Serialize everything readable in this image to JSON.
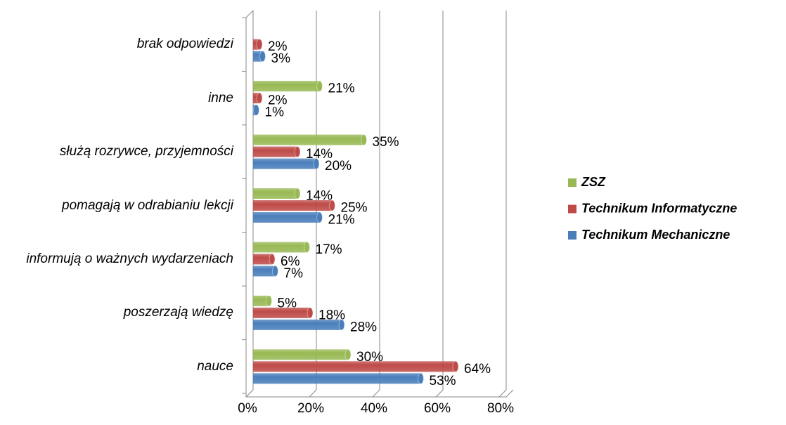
{
  "chart_data": {
    "type": "bar",
    "orientation": "horizontal",
    "categories": [
      "nauce",
      "poszerzają wiedzę",
      "informują o ważnych wydarzeniach",
      "pomagają w odrabianiu lekcji",
      "służą rozrywce, przyjemności",
      "inne",
      "brak odpowiedzi"
    ],
    "series": [
      {
        "name": "Technikum Mechaniczne",
        "color": "#4a7ebb",
        "values": [
          53,
          28,
          7,
          21,
          20,
          1,
          3
        ],
        "value_labels": [
          "53%",
          "28%",
          "7%",
          "21%",
          "20%",
          "1%",
          "3%"
        ]
      },
      {
        "name": "Technikum Informatyczne",
        "color": "#be4b48",
        "values": [
          64,
          18,
          6,
          25,
          14,
          2,
          2
        ],
        "value_labels": [
          "64%",
          "18%",
          "6%",
          "25%",
          "14%",
          "2%",
          "2%"
        ]
      },
      {
        "name": "ZSZ",
        "color": "#98b954",
        "values": [
          30,
          5,
          17,
          14,
          35,
          21,
          null
        ],
        "value_labels": [
          "30%",
          "5%",
          "17%",
          "14%",
          "35%",
          "21%",
          null
        ]
      }
    ],
    "xlim": [
      0,
      80
    ],
    "xticks": [
      {
        "value": 0,
        "label": "0%"
      },
      {
        "value": 20,
        "label": "20%"
      },
      {
        "value": 40,
        "label": "40%"
      },
      {
        "value": 60,
        "label": "60%"
      },
      {
        "value": 80,
        "label": "80%"
      }
    ],
    "grid": true,
    "legend": "right"
  }
}
